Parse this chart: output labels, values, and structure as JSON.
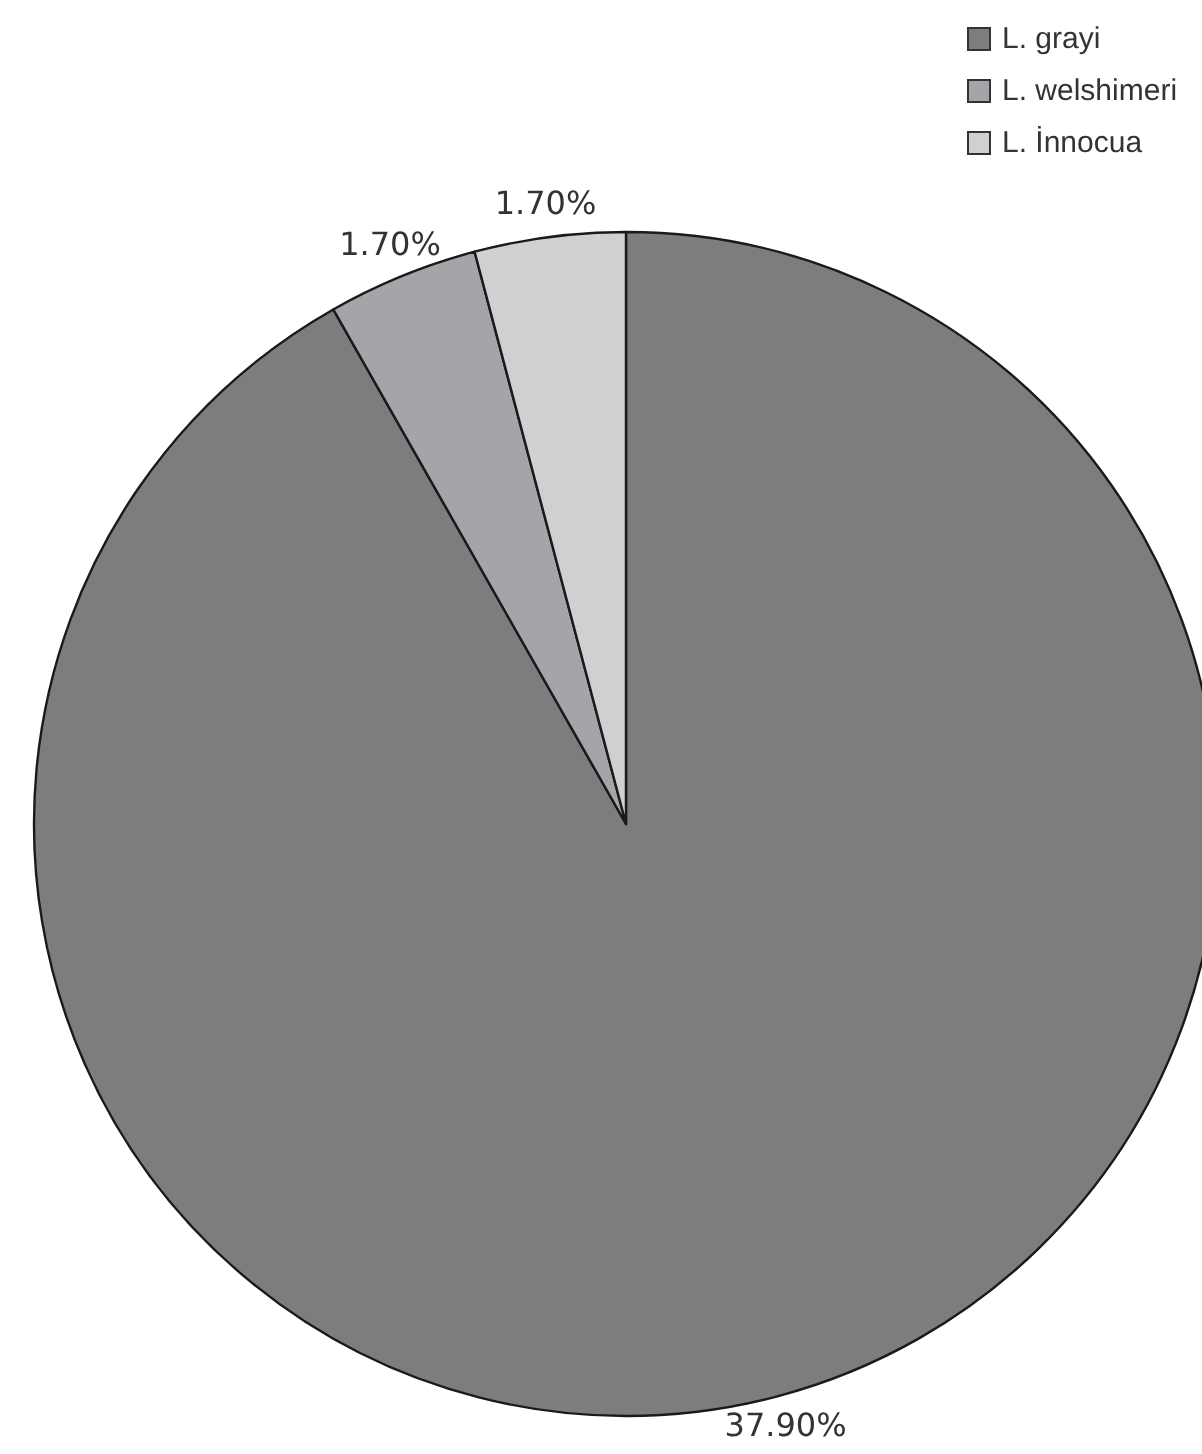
{
  "chart_data": {
    "type": "pie",
    "categories": [
      "L. grayi",
      "L. welshimeri",
      "L. İnnocua"
    ],
    "values": [
      37.9,
      1.7,
      1.7
    ],
    "colors": [
      "#7f7c80",
      "#a5a4a8",
      "#d2cfd3"
    ],
    "value_labels": [
      "37.90%",
      "1.70%",
      "1.70%"
    ],
    "legend": "top right"
  }
}
